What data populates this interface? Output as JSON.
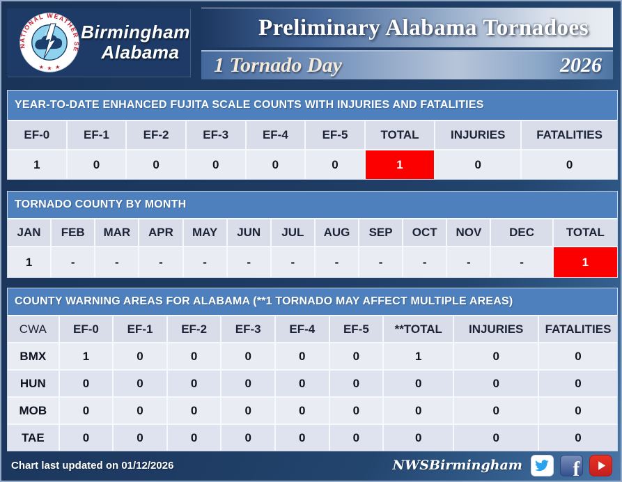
{
  "header": {
    "agency_line1": "Birmingham",
    "agency_line2": "Alabama",
    "logo_ring_text": "NATIONAL WEATHER SERVICE",
    "title": "Preliminary Alabama Tornadoes",
    "subtitle": "1 Tornado Day",
    "year": "2026"
  },
  "chart_data": [
    {
      "type": "table",
      "title": "YEAR-TO-DATE ENHANCED FUJITA SCALE COUNTS WITH INJURIES AND FATALITIES",
      "columns": [
        "EF-0",
        "EF-1",
        "EF-2",
        "EF-3",
        "EF-4",
        "EF-5",
        "TOTAL",
        "INJURIES",
        "FATALITIES"
      ],
      "rows": [
        [
          "1",
          "0",
          "0",
          "0",
          "0",
          "0",
          "1",
          "0",
          "0"
        ]
      ],
      "highlight": {
        "row": 0,
        "col": 6
      }
    },
    {
      "type": "table",
      "title": "TORNADO COUNTY BY MONTH",
      "columns": [
        "JAN",
        "FEB",
        "MAR",
        "APR",
        "MAY",
        "JUN",
        "JUL",
        "AUG",
        "SEP",
        "OCT",
        "NOV",
        "DEC",
        "TOTAL"
      ],
      "rows": [
        [
          "1",
          "-",
          "-",
          "-",
          "-",
          "-",
          "-",
          "-",
          "-",
          "-",
          "-",
          "-",
          "1"
        ]
      ],
      "highlight": {
        "row": 0,
        "col": 12
      }
    },
    {
      "type": "table",
      "title": "COUNTY WARNING AREAS FOR ALABAMA (**1 TORNADO MAY AFFECT MULTIPLE AREAS)",
      "columns": [
        "CWA",
        "EF-0",
        "EF-1",
        "EF-2",
        "EF-3",
        "EF-4",
        "EF-5",
        "**TOTAL",
        "INJURIES",
        "FATALITIES"
      ],
      "rows": [
        [
          "BMX",
          "1",
          "0",
          "0",
          "0",
          "0",
          "0",
          "1",
          "0",
          "0"
        ],
        [
          "HUN",
          "0",
          "0",
          "0",
          "0",
          "0",
          "0",
          "0",
          "0",
          "0"
        ],
        [
          "MOB",
          "0",
          "0",
          "0",
          "0",
          "0",
          "0",
          "0",
          "0",
          "0"
        ],
        [
          "TAE",
          "0",
          "0",
          "0",
          "0",
          "0",
          "0",
          "0",
          "0",
          "0"
        ]
      ]
    }
  ],
  "footer": {
    "updated_text": "Chart last updated on 01/12/2026",
    "social_handle": "NWSBirmingham",
    "icons": [
      "twitter-icon",
      "facebook-icon",
      "youtube-icon"
    ]
  },
  "colors": {
    "accent_blue": "#4d80bd",
    "highlight_red": "#fc0000",
    "header_row": "#d9dce9",
    "row_light": "#eaecf4",
    "row_dark": "#dfe3ef",
    "background_navy": "#1e3b63"
  }
}
